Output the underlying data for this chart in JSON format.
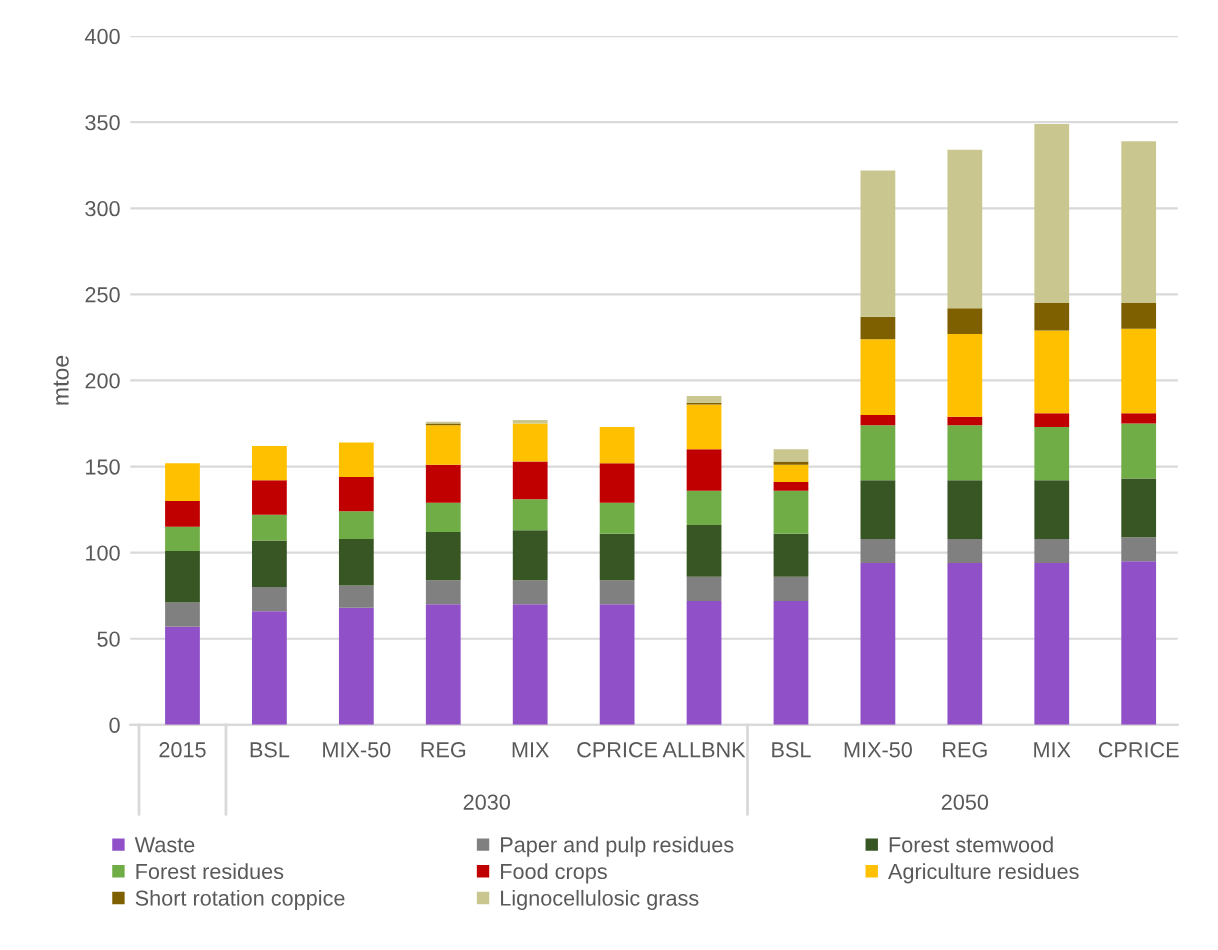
{
  "chart_data": {
    "type": "bar",
    "stacked": true,
    "ylabel": "mtoe",
    "categories": [
      "2015",
      "BSL",
      "MIX-50",
      "REG",
      "MIX",
      "CPRICE",
      "ALLBNK",
      "BSL",
      "MIX-50",
      "REG",
      "MIX",
      "CPRICE"
    ],
    "series": [
      {
        "name": "Waste",
        "color": "#9050c8",
        "values": [
          57,
          66,
          68,
          70,
          70,
          70,
          72,
          72,
          94,
          94,
          94,
          95
        ]
      },
      {
        "name": "Paper and pulp residues",
        "color": "#808080",
        "values": [
          14,
          14,
          13,
          14,
          14,
          14,
          14,
          14,
          14,
          14,
          14,
          14
        ]
      },
      {
        "name": "Forest stemwood",
        "color": "#375623",
        "values": [
          30,
          27,
          27,
          28,
          29,
          27,
          30,
          25,
          34,
          34,
          34,
          34
        ]
      },
      {
        "name": "Forest residues",
        "color": "#70ad47",
        "values": [
          14,
          15,
          16,
          17,
          18,
          18,
          20,
          25,
          32,
          32,
          31,
          32
        ]
      },
      {
        "name": "Food crops",
        "color": "#c00000",
        "values": [
          15,
          20,
          20,
          22,
          22,
          23,
          24,
          5,
          6,
          5,
          8,
          6
        ]
      },
      {
        "name": "Agriculture residues",
        "color": "#ffc000",
        "values": [
          22,
          20,
          20,
          23,
          22,
          21,
          26,
          10,
          44,
          48,
          48,
          49
        ]
      },
      {
        "name": "Short rotation coppice",
        "color": "#7f6000",
        "values": [
          0,
          0,
          0,
          1,
          0,
          0,
          1,
          2,
          13,
          15,
          16,
          15
        ]
      },
      {
        "name": "Lignocellulosic grass",
        "color": "#c9c78f",
        "values": [
          0,
          0,
          0,
          1,
          2,
          0,
          4,
          7,
          85,
          92,
          104,
          94
        ]
      }
    ],
    "annotations": [
      "2030",
      "2050"
    ],
    "ylim": [
      0,
      400
    ],
    "yticks": [
      0,
      50,
      100,
      150,
      200,
      250,
      300,
      350,
      400
    ],
    "grid": "y",
    "legend": "bottom"
  }
}
